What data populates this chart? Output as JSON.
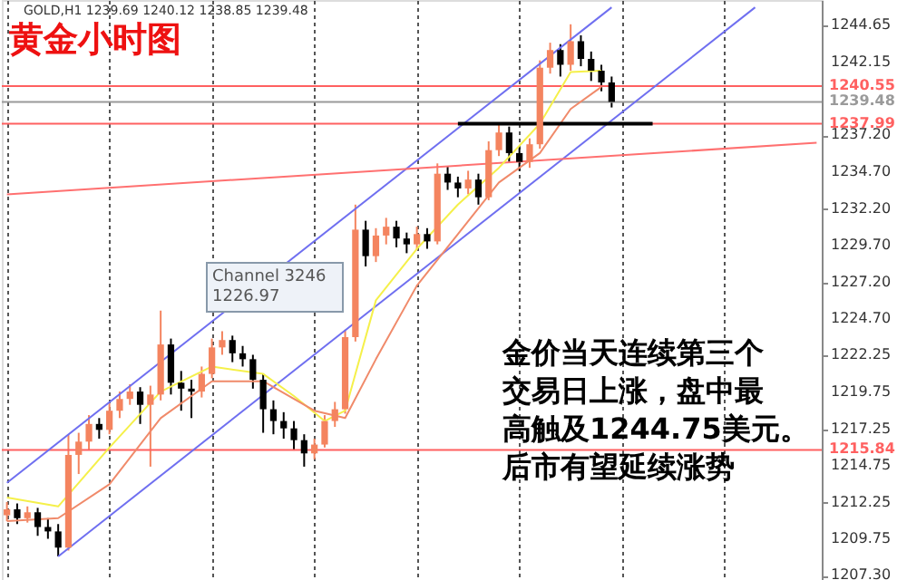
{
  "chart_data": {
    "type": "candlestick",
    "title": "黄金小时图",
    "subtitle": "GOLD,H1 1239.69 1240.12 1238.85 1239.48",
    "categories": [
      null,
      null,
      null,
      null,
      null,
      null,
      null,
      null,
      null,
      null,
      null,
      null,
      null,
      null,
      null,
      null,
      null,
      null,
      null,
      null,
      null,
      null,
      null,
      null,
      null,
      null,
      null,
      null,
      null,
      null,
      null,
      null,
      null,
      null,
      null,
      null,
      null,
      null,
      null,
      null,
      null,
      null,
      null,
      null,
      null,
      null,
      null,
      null,
      null,
      null,
      null,
      null,
      null,
      null,
      null,
      null,
      null,
      null,
      null,
      null,
      null,
      null,
      null,
      null,
      null,
      null,
      null,
      null,
      null,
      null,
      null,
      null,
      null,
      null,
      null,
      null,
      null,
      null,
      null,
      null
    ],
    "ohlc": [
      [
        1211.4,
        1212.3,
        1211.0,
        1211.8
      ],
      [
        1211.8,
        1212.2,
        1210.8,
        1211.2
      ],
      [
        1211.2,
        1212.0,
        1210.9,
        1211.6
      ],
      [
        1211.6,
        1211.9,
        1210.0,
        1210.6
      ],
      [
        1210.6,
        1211.2,
        1209.8,
        1210.3
      ],
      [
        1210.3,
        1210.8,
        1208.6,
        1209.2
      ],
      [
        1209.2,
        1216.9,
        1209.0,
        1215.5
      ],
      [
        1215.5,
        1217.0,
        1214.2,
        1216.4
      ],
      [
        1216.4,
        1218.2,
        1215.8,
        1217.6
      ],
      [
        1217.6,
        1218.0,
        1216.6,
        1217.2
      ],
      [
        1217.2,
        1219.0,
        1216.9,
        1218.5
      ],
      [
        1218.5,
        1219.8,
        1218.0,
        1219.3
      ],
      [
        1219.3,
        1220.3,
        1218.9,
        1219.8
      ],
      [
        1219.8,
        1220.1,
        1217.6,
        1218.9
      ],
      [
        1218.9,
        1220.2,
        1214.7,
        1219.6
      ],
      [
        1219.6,
        1225.3,
        1219.2,
        1223.0
      ],
      [
        1223.0,
        1223.4,
        1219.6,
        1220.4
      ],
      [
        1220.4,
        1221.2,
        1218.5,
        1220.0
      ],
      [
        1220.0,
        1220.6,
        1218.0,
        1219.8
      ],
      [
        1219.8,
        1221.5,
        1219.4,
        1221.0
      ],
      [
        1221.0,
        1223.4,
        1220.7,
        1222.8
      ],
      [
        1222.8,
        1223.9,
        1222.3,
        1223.3
      ],
      [
        1223.3,
        1223.6,
        1221.8,
        1222.4
      ],
      [
        1222.4,
        1222.9,
        1221.5,
        1222.0
      ],
      [
        1222.0,
        1222.3,
        1220.0,
        1220.6
      ],
      [
        1220.6,
        1221.0,
        1217.0,
        1218.6
      ],
      [
        1218.6,
        1219.2,
        1216.9,
        1217.8
      ],
      [
        1217.8,
        1218.4,
        1216.6,
        1217.3
      ],
      [
        1217.3,
        1217.8,
        1215.8,
        1216.5
      ],
      [
        1216.5,
        1216.9,
        1214.7,
        1215.6
      ],
      [
        1215.6,
        1216.6,
        1215.2,
        1216.2
      ],
      [
        1216.2,
        1218.2,
        1216.0,
        1217.8
      ],
      [
        1217.8,
        1219.1,
        1217.4,
        1218.6
      ],
      [
        1218.6,
        1224.0,
        1218.3,
        1223.5
      ],
      [
        1223.5,
        1232.5,
        1223.2,
        1230.8
      ],
      [
        1230.8,
        1231.4,
        1228.3,
        1229.0
      ],
      [
        1229.0,
        1230.9,
        1228.6,
        1230.4
      ],
      [
        1230.4,
        1231.6,
        1229.8,
        1231.0
      ],
      [
        1231.0,
        1231.4,
        1229.6,
        1230.2
      ],
      [
        1230.2,
        1230.6,
        1229.2,
        1229.8
      ],
      [
        1229.8,
        1231.0,
        1229.4,
        1230.5
      ],
      [
        1230.5,
        1230.9,
        1229.5,
        1230.0
      ],
      [
        1230.0,
        1235.3,
        1229.8,
        1234.6
      ],
      [
        1234.6,
        1235.1,
        1233.5,
        1234.0
      ],
      [
        1234.0,
        1234.4,
        1233.0,
        1233.6
      ],
      [
        1233.6,
        1234.8,
        1233.2,
        1234.2
      ],
      [
        1234.2,
        1234.6,
        1232.5,
        1233.0
      ],
      [
        1233.0,
        1236.8,
        1232.8,
        1236.2
      ],
      [
        1236.2,
        1238.0,
        1235.8,
        1237.4
      ],
      [
        1237.4,
        1237.8,
        1235.4,
        1236.0
      ],
      [
        1236.0,
        1236.4,
        1234.8,
        1235.4
      ],
      [
        1235.4,
        1237.0,
        1235.0,
        1236.6
      ],
      [
        1236.6,
        1242.3,
        1236.3,
        1241.8
      ],
      [
        1241.8,
        1243.5,
        1241.4,
        1243.0
      ],
      [
        1243.0,
        1243.4,
        1241.2,
        1242.0
      ],
      [
        1242.0,
        1244.75,
        1241.6,
        1243.6
      ],
      [
        1243.6,
        1244.0,
        1241.9,
        1242.4
      ],
      [
        1242.4,
        1242.9,
        1240.9,
        1241.6
      ],
      [
        1241.6,
        1242.0,
        1240.2,
        1240.8
      ],
      [
        1240.8,
        1241.2,
        1239.1,
        1239.48
      ],
      null,
      null,
      null,
      null,
      null,
      null,
      null,
      null,
      null,
      null,
      null,
      null,
      null,
      null,
      null,
      null,
      null,
      null,
      null,
      null
    ],
    "colors": [
      "#f4845f",
      "#000000",
      "#f4845f",
      "#000000",
      "#000000",
      "#000000",
      "#f4845f",
      "#f4845f",
      "#f4845f",
      "#000000",
      "#f4845f",
      "#f4845f",
      "#f4845f",
      "#000000",
      "#f4845f",
      "#f4845f",
      "#000000",
      "#000000",
      "#000000",
      "#f4845f",
      "#f4845f",
      "#f4845f",
      "#000000",
      "#000000",
      "#000000",
      "#000000",
      "#000000",
      "#000000",
      "#000000",
      "#000000",
      "#f4845f",
      "#f4845f",
      "#f4845f",
      "#f4845f",
      "#f4845f",
      "#000000",
      "#f4845f",
      "#f4845f",
      "#000000",
      "#000000",
      "#f4845f",
      "#000000",
      "#f4845f",
      "#000000",
      "#000000",
      "#f4845f",
      "#000000",
      "#f4845f",
      "#f4845f",
      "#000000",
      "#000000",
      "#f4845f",
      "#f4845f",
      "#f4845f",
      "#000000",
      "#f4845f",
      "#000000",
      "#000000",
      "#000000",
      "#000000",
      null,
      null,
      null,
      null,
      null,
      null,
      null,
      null,
      null,
      null,
      null,
      null,
      null,
      null,
      null,
      null,
      null,
      null,
      null,
      null
    ],
    "series": [
      {
        "type": "line",
        "color": "#6f6ff0",
        "values": [
          1213.6,
          null,
          null,
          null,
          null,
          null,
          null,
          null,
          null,
          null,
          null,
          null,
          null,
          null,
          null,
          null,
          null,
          null,
          null,
          null,
          null,
          null,
          null,
          null,
          null,
          null,
          null,
          null,
          null,
          null,
          null,
          null,
          null,
          null,
          null,
          null,
          null,
          null,
          null,
          null,
          null,
          null,
          null,
          null,
          null,
          null,
          null,
          null,
          null,
          null,
          null,
          null,
          null,
          null,
          null,
          null,
          null,
          null,
          null,
          1245.9,
          null,
          null,
          null,
          null,
          null,
          null,
          null,
          null,
          null,
          null,
          null,
          null,
          null,
          null,
          null,
          null,
          null,
          null,
          null,
          null
        ]
      },
      {
        "type": "line",
        "color": "#6f6ff0",
        "values": [
          null,
          null,
          null,
          null,
          null,
          1208.6,
          null,
          null,
          null,
          null,
          null,
          null,
          null,
          null,
          null,
          null,
          null,
          null,
          null,
          null,
          null,
          null,
          null,
          null,
          null,
          null,
          null,
          null,
          null,
          null,
          null,
          null,
          null,
          null,
          null,
          null,
          null,
          null,
          null,
          null,
          null,
          null,
          null,
          null,
          null,
          null,
          null,
          null,
          null,
          null,
          null,
          null,
          null,
          null,
          null,
          null,
          null,
          null,
          null,
          null,
          null,
          null,
          null,
          null,
          null,
          null,
          null,
          null,
          null,
          null,
          null,
          null,
          null,
          1245.9,
          null,
          null,
          null,
          null,
          null,
          null
        ]
      },
      {
        "type": "line",
        "color": "#ff7070",
        "values": [
          1233.2,
          null,
          null,
          null,
          null,
          null,
          null,
          null,
          null,
          null,
          null,
          null,
          null,
          null,
          null,
          null,
          null,
          null,
          null,
          null,
          null,
          null,
          null,
          null,
          null,
          null,
          null,
          null,
          null,
          null,
          null,
          null,
          null,
          null,
          null,
          null,
          null,
          null,
          null,
          null,
          null,
          null,
          null,
          null,
          null,
          null,
          null,
          null,
          null,
          null,
          null,
          null,
          null,
          null,
          null,
          null,
          null,
          null,
          null,
          null,
          null,
          null,
          null,
          null,
          null,
          null,
          null,
          null,
          null,
          null,
          null,
          null,
          null,
          null,
          null,
          null,
          null,
          null,
          null,
          1236.7
        ]
      },
      {
        "type": "line",
        "color": "#f5f04a",
        "values": [
          1212.6,
          null,
          null,
          null,
          null,
          1212.0,
          null,
          null,
          null,
          null,
          1216.0,
          null,
          null,
          null,
          null,
          1219.8,
          null,
          null,
          null,
          null,
          1221.5,
          null,
          null,
          null,
          null,
          1221.0,
          null,
          null,
          1219.5,
          null,
          null,
          1217.8,
          null,
          1218.5,
          null,
          null,
          1226.0,
          null,
          null,
          null,
          1229.5,
          null,
          null,
          null,
          1232.5,
          null,
          null,
          null,
          1235.0,
          null,
          null,
          null,
          1238.0,
          null,
          null,
          1241.5,
          null,
          null,
          1241.6,
          null,
          null,
          null,
          null,
          null,
          null,
          null,
          null,
          null,
          null,
          null,
          null,
          null,
          null,
          null,
          null,
          null,
          null,
          null,
          null,
          null
        ]
      },
      {
        "type": "line",
        "color": "#f08a6a",
        "values": [
          1211.0,
          null,
          null,
          null,
          null,
          1211.2,
          null,
          null,
          null,
          null,
          1213.5,
          null,
          null,
          null,
          null,
          1218.0,
          null,
          null,
          null,
          null,
          1220.5,
          null,
          null,
          null,
          null,
          1220.5,
          null,
          null,
          null,
          null,
          1218.5,
          null,
          null,
          1218.0,
          null,
          null,
          1222.0,
          null,
          null,
          null,
          1227.0,
          null,
          null,
          null,
          1230.5,
          null,
          null,
          null,
          1234.0,
          null,
          null,
          null,
          1236.0,
          null,
          null,
          1239.0,
          null,
          null,
          1240.5,
          null,
          null,
          null,
          null,
          null,
          null,
          null,
          null,
          null,
          null,
          null,
          null,
          null,
          null,
          null,
          null,
          null,
          null,
          null,
          null,
          null
        ]
      },
      {
        "type": "line",
        "color": "#000000",
        "values": [
          null,
          null,
          null,
          null,
          null,
          null,
          null,
          null,
          null,
          null,
          null,
          null,
          null,
          null,
          null,
          null,
          null,
          null,
          null,
          null,
          null,
          null,
          null,
          null,
          null,
          null,
          null,
          null,
          null,
          null,
          null,
          null,
          null,
          null,
          null,
          null,
          null,
          null,
          null,
          null,
          null,
          null,
          null,
          null,
          1238.0,
          null,
          null,
          null,
          null,
          null,
          null,
          null,
          null,
          null,
          null,
          null,
          null,
          null,
          null,
          null,
          null,
          null,
          null,
          1238.0,
          null,
          null,
          null,
          null,
          null,
          null,
          null,
          null,
          null,
          null,
          null,
          null,
          null,
          null,
          null,
          null
        ]
      }
    ],
    "ylim": [
      1207.0,
      1246.4
    ],
    "yticks": [
      1244.65,
      1242.15,
      {
        "value": 1237.2,
        "label": "1237.20"
      },
      {
        "value": 1234.7,
        "label": "1234.70"
      },
      {
        "value": 1232.2,
        "label": "1232.20"
      },
      {
        "value": 1229.7,
        "label": "1229.70"
      },
      {
        "value": 1227.2,
        "label": "1227.20"
      },
      {
        "value": 1224.7,
        "label": "1224.70"
      },
      1222.25,
      1219.75,
      1217.25,
      1214.75,
      1212.25,
      1209.75,
      {
        "value": 1207.3,
        "label": "1207.30"
      }
    ],
    "ref_lines": [
      {
        "axis": "y",
        "value": 1240.55,
        "label": "1240.55",
        "color": "#ff6060"
      },
      {
        "axis": "y",
        "value": 1239.48,
        "label": "1239.48",
        "color": "#9a9a9a"
      },
      {
        "axis": "y",
        "value": 1237.99,
        "label": "1237.99",
        "color": "#ff6060"
      },
      {
        "axis": "y",
        "value": 1215.84,
        "label": "1215.84",
        "color": "#ff6060"
      }
    ],
    "annotations": [
      "Channel 3246\n1226.97",
      "金价当天连续第三个",
      "交易日上涨，盘中最",
      "高触及1244.75美元。",
      "后市有望延续涨势"
    ],
    "grid": "x",
    "tick_labels": "y",
    "marker": "none",
    "line_style": "solid"
  }
}
